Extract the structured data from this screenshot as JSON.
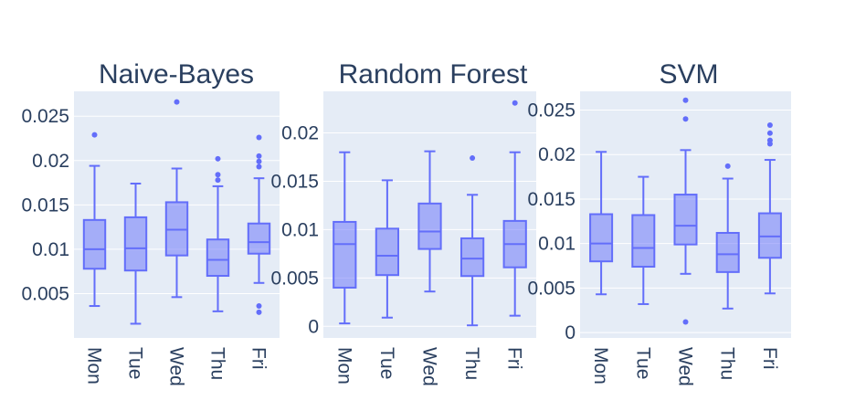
{
  "chart_data": [
    {
      "type": "box",
      "title": "Naive-Bayes",
      "categories": [
        "Mon",
        "Tue",
        "Wed",
        "Thu",
        "Fri"
      ],
      "ylim": [
        0.0,
        0.0278
      ],
      "yticks": [
        0.005,
        0.01,
        0.015,
        0.02,
        0.025
      ],
      "ytick_labels": [
        "0.005",
        "0.01",
        "0.015",
        "0.02",
        "0.025"
      ],
      "boxes": [
        {
          "q1": 0.0078,
          "median": 0.01,
          "q3": 0.0133,
          "low": 0.0036,
          "high": 0.0194,
          "outliers": [
            0.0229
          ]
        },
        {
          "q1": 0.0076,
          "median": 0.0101,
          "q3": 0.0136,
          "low": 0.0016,
          "high": 0.0174,
          "outliers": []
        },
        {
          "q1": 0.0093,
          "median": 0.0122,
          "q3": 0.0153,
          "low": 0.0046,
          "high": 0.0191,
          "outliers": [
            0.0266
          ]
        },
        {
          "q1": 0.007,
          "median": 0.0088,
          "q3": 0.0111,
          "low": 0.003,
          "high": 0.0171,
          "outliers": [
            0.0178,
            0.0184,
            0.0202
          ]
        },
        {
          "q1": 0.0095,
          "median": 0.0108,
          "q3": 0.0129,
          "low": 0.0062,
          "high": 0.018,
          "outliers": [
            0.0193,
            0.0199,
            0.0205,
            0.0226,
            0.0036,
            0.0029
          ]
        }
      ]
    },
    {
      "type": "box",
      "title": "Random Forest",
      "categories": [
        "Mon",
        "Tue",
        "Wed",
        "Thu",
        "Fri"
      ],
      "ylim": [
        -0.0012,
        0.0243
      ],
      "yticks": [
        0,
        0.005,
        0.01,
        0.015,
        0.02
      ],
      "ytick_labels": [
        "0",
        "0.005",
        "0.01",
        "0.015",
        "0.02"
      ],
      "boxes": [
        {
          "q1": 0.004,
          "median": 0.0085,
          "q3": 0.0108,
          "low": 0.0003,
          "high": 0.018,
          "outliers": []
        },
        {
          "q1": 0.0053,
          "median": 0.0073,
          "q3": 0.0101,
          "low": 0.0009,
          "high": 0.0151,
          "outliers": []
        },
        {
          "q1": 0.008,
          "median": 0.0098,
          "q3": 0.0127,
          "low": 0.0036,
          "high": 0.0181,
          "outliers": []
        },
        {
          "q1": 0.0052,
          "median": 0.007,
          "q3": 0.0091,
          "low": 0.0001,
          "high": 0.0136,
          "outliers": [
            0.0174
          ]
        },
        {
          "q1": 0.0061,
          "median": 0.0085,
          "q3": 0.0109,
          "low": 0.0011,
          "high": 0.018,
          "outliers": [
            0.0231
          ]
        }
      ]
    },
    {
      "type": "box",
      "title": "SVM",
      "categories": [
        "Mon",
        "Tue",
        "Wed",
        "Thu",
        "Fri"
      ],
      "ylim": [
        -0.0006,
        0.0271
      ],
      "yticks": [
        0,
        0.005,
        0.01,
        0.015,
        0.02,
        0.025
      ],
      "ytick_labels": [
        "0",
        "0.005",
        "0.01",
        "0.015",
        "0.02",
        "0.025"
      ],
      "boxes": [
        {
          "q1": 0.008,
          "median": 0.01,
          "q3": 0.0133,
          "low": 0.0043,
          "high": 0.0203,
          "outliers": []
        },
        {
          "q1": 0.0074,
          "median": 0.0095,
          "q3": 0.0132,
          "low": 0.0032,
          "high": 0.0175,
          "outliers": []
        },
        {
          "q1": 0.0099,
          "median": 0.012,
          "q3": 0.0155,
          "low": 0.0066,
          "high": 0.0205,
          "outliers": [
            0.024,
            0.0261,
            0.0012
          ]
        },
        {
          "q1": 0.0068,
          "median": 0.0088,
          "q3": 0.0112,
          "low": 0.0027,
          "high": 0.0173,
          "outliers": [
            0.0187
          ]
        },
        {
          "q1": 0.0084,
          "median": 0.0108,
          "q3": 0.0134,
          "low": 0.0044,
          "high": 0.0194,
          "outliers": [
            0.0212,
            0.0216,
            0.0224,
            0.0233
          ]
        }
      ]
    }
  ],
  "colors": {
    "box_line": "#636efa",
    "box_fill": "rgba(99,110,250,0.5)",
    "plot_bg": "#e5ecf6",
    "grid": "#ffffff",
    "text": "#2a3f5f"
  }
}
